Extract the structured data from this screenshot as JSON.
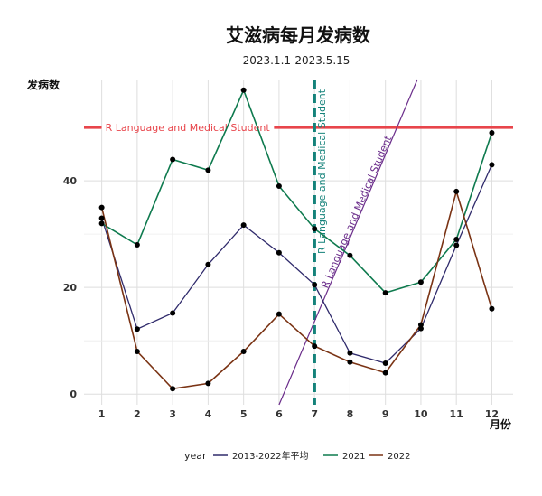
{
  "chart_data": {
    "type": "line",
    "title": "艾滋病每月发病数",
    "subtitle": "2023.1.1-2023.5.15",
    "xlabel": "月份",
    "ylabel": "发病数",
    "categories": [
      1,
      2,
      3,
      4,
      5,
      6,
      7,
      8,
      9,
      10,
      11,
      12
    ],
    "xlim": [
      0.5,
      12.6
    ],
    "ylim": [
      -2,
      59
    ],
    "yticks": [
      0,
      20,
      40
    ],
    "grid": true,
    "legend_title": "year",
    "legend_position": "bottom",
    "series": [
      {
        "name": "2013-2022年平均",
        "color": "#2f2a6b",
        "values": [
          33,
          12.2,
          15.2,
          24.3,
          31.7,
          26.5,
          20.5,
          7.7,
          5.8,
          12.3,
          27.9,
          43
        ]
      },
      {
        "name": "2021",
        "color": "#0e7a4e",
        "values": [
          32,
          28,
          44,
          42,
          57,
          39,
          31,
          26,
          19,
          21,
          29,
          49
        ]
      },
      {
        "name": "2022",
        "color": "#7a3314",
        "values": [
          35,
          8,
          1,
          2,
          8,
          15,
          9,
          6,
          4,
          13,
          38,
          16
        ]
      }
    ],
    "annotations": {
      "hline": {
        "y": 50,
        "color": "#e8454b",
        "label": "R Language and Medical Student"
      },
      "vline": {
        "x": 7,
        "color": "#14827a",
        "label": "R Language and Medical Student"
      },
      "abline": {
        "x1": 6,
        "y1": -2,
        "x2": 9.9,
        "y2": 59,
        "color": "#6a2c8a",
        "label": "R Language and Medical Student"
      }
    }
  }
}
